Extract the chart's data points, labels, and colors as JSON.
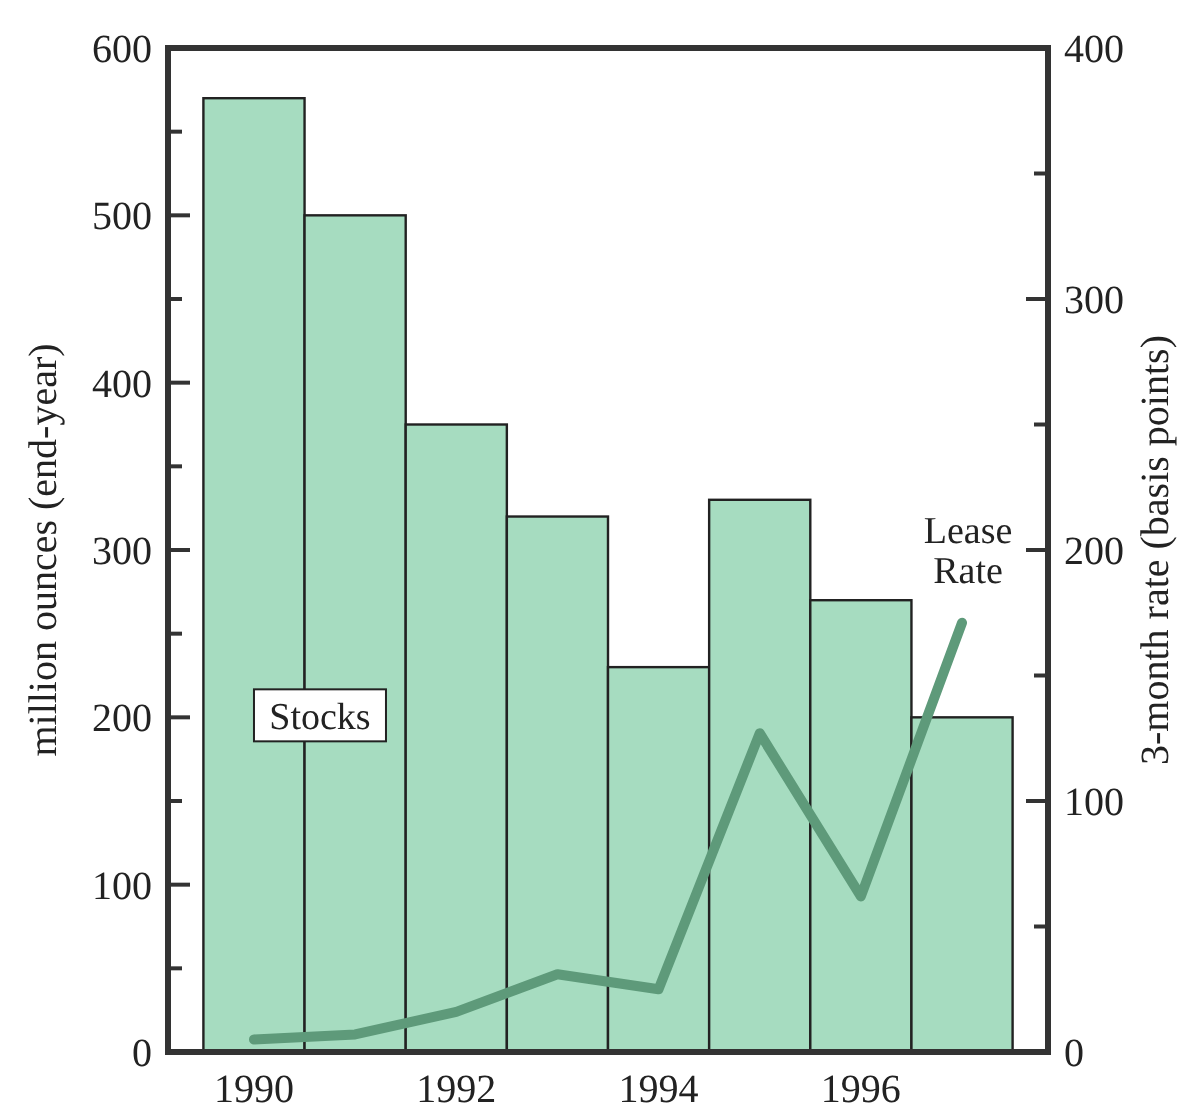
{
  "chart_data": {
    "type": "bar",
    "x": [
      1990,
      1991,
      1992,
      1993,
      1994,
      1995,
      1996,
      1997
    ],
    "xlim": [
      1989.15,
      1997.85
    ],
    "xticks": [
      1990,
      1992,
      1994,
      1996
    ],
    "ylabel": "million ounces (end-year)",
    "y2label": "3-month rate (basis points)",
    "ylim": [
      0,
      600
    ],
    "yticks": [
      0,
      {
        "value": 50,
        "label": null
      },
      100,
      {
        "value": 150,
        "label": null
      },
      200,
      {
        "value": 250,
        "label": null
      },
      300,
      {
        "value": 350,
        "label": null
      },
      400,
      {
        "value": 450,
        "label": null
      },
      500,
      {
        "value": 550,
        "label": null
      },
      600
    ],
    "y2lim": [
      0,
      400
    ],
    "y2ticks": [
      0,
      {
        "value": 50,
        "label": null
      },
      100,
      {
        "value": 150,
        "label": null
      },
      200,
      {
        "value": 250,
        "label": null
      },
      300,
      {
        "value": 350,
        "label": null
      },
      400
    ],
    "grid": false,
    "series": [
      {
        "name": "Stocks",
        "color": "#a6dcc0",
        "values": [
          570,
          500,
          375,
          320,
          230,
          330,
          270,
          200
        ]
      },
      {
        "name": "Lease Rate",
        "type": "line",
        "axis": "y2",
        "color": "#5e9a7a",
        "values": [
          5,
          7,
          16,
          31,
          25,
          127,
          62,
          171
        ]
      }
    ]
  }
}
